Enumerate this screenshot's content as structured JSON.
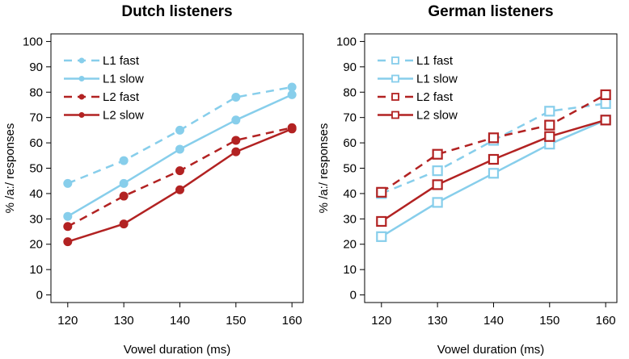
{
  "chart_data": [
    {
      "type": "line",
      "title": "Dutch listeners",
      "xlabel": "Vowel duration (ms)",
      "ylabel": "% /a:/ responses",
      "x": [
        120,
        130,
        140,
        150,
        160
      ],
      "xlim": [
        117,
        162
      ],
      "ylim": [
        -3,
        103
      ],
      "yticks": [
        0,
        10,
        20,
        30,
        40,
        50,
        60,
        70,
        80,
        90,
        100
      ],
      "xticks": [
        120,
        130,
        140,
        150,
        160
      ],
      "marker": "circle",
      "legend_position": "top-left",
      "series": [
        {
          "name": "L1 fast",
          "color": "#87ceeb",
          "dash": true,
          "values": [
            44,
            53,
            65,
            78,
            82
          ]
        },
        {
          "name": "L1 slow",
          "color": "#87ceeb",
          "dash": false,
          "values": [
            31,
            44,
            57.5,
            69,
            79
          ]
        },
        {
          "name": "L2 fast",
          "color": "#b22222",
          "dash": true,
          "values": [
            27,
            39,
            49,
            61,
            66
          ]
        },
        {
          "name": "L2 slow",
          "color": "#b22222",
          "dash": false,
          "values": [
            21,
            28,
            41.5,
            56.5,
            65.5
          ]
        }
      ]
    },
    {
      "type": "line",
      "title": "German listeners",
      "xlabel": "Vowel duration (ms)",
      "ylabel": "% /a:/ responses",
      "x": [
        120,
        130,
        140,
        150,
        160
      ],
      "xlim": [
        117,
        162
      ],
      "ylim": [
        -3,
        103
      ],
      "yticks": [
        0,
        10,
        20,
        30,
        40,
        50,
        60,
        70,
        80,
        90,
        100
      ],
      "xticks": [
        120,
        130,
        140,
        150,
        160
      ],
      "marker": "square",
      "legend_position": "top-left",
      "series": [
        {
          "name": "L1 fast",
          "color": "#87ceeb",
          "dash": true,
          "values": [
            40,
            49,
            61,
            72.5,
            75.5
          ]
        },
        {
          "name": "L1 slow",
          "color": "#87ceeb",
          "dash": false,
          "values": [
            23,
            36.5,
            48,
            59.5,
            69
          ]
        },
        {
          "name": "L2 fast",
          "color": "#b22222",
          "dash": true,
          "values": [
            40.5,
            55.5,
            62,
            67,
            79
          ]
        },
        {
          "name": "L2 slow",
          "color": "#b22222",
          "dash": false,
          "values": [
            29,
            43.5,
            53.5,
            62.5,
            69
          ]
        }
      ]
    }
  ]
}
